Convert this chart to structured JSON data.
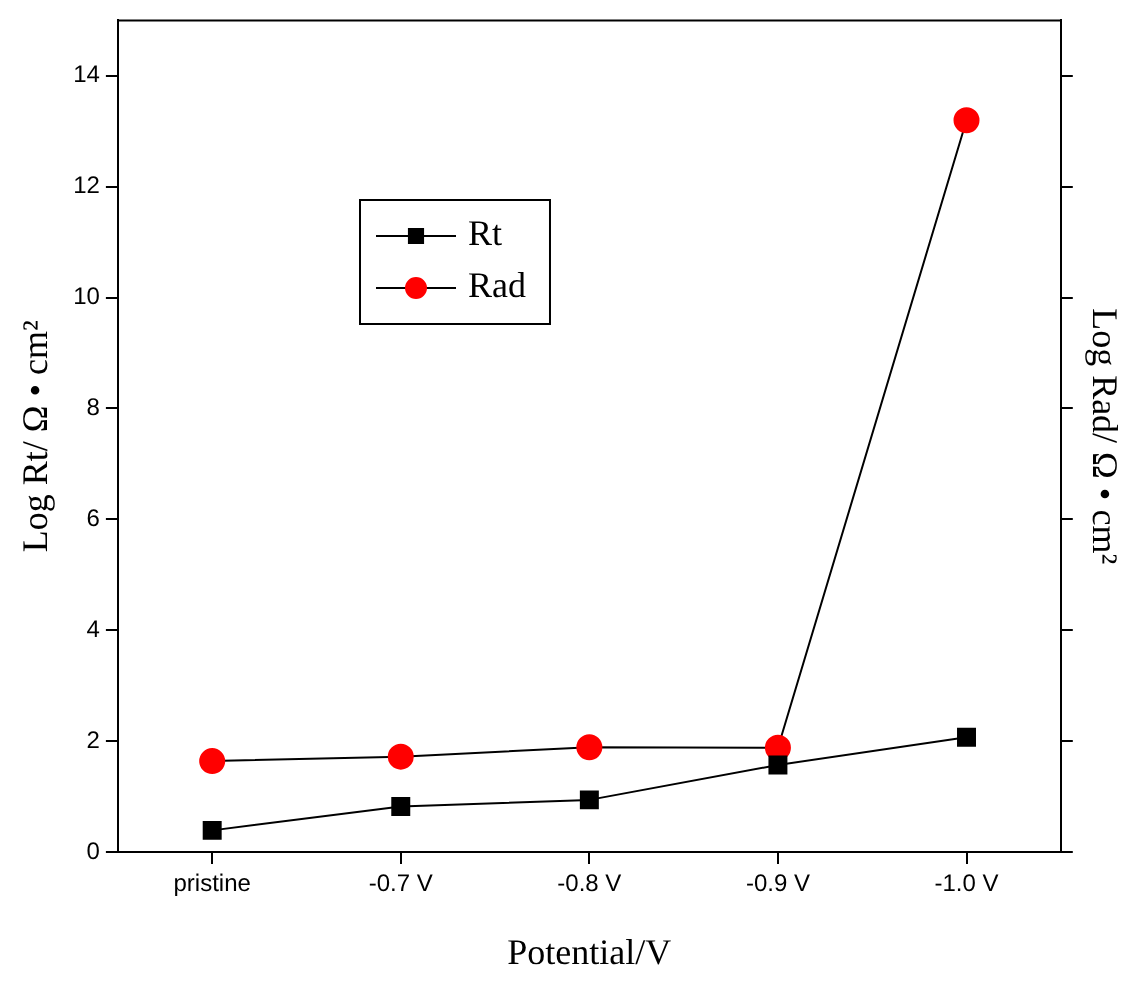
{
  "chart_data": {
    "type": "line",
    "xlabel": "Potential/V",
    "ylabel": "Log Rt/ Ω • cm²",
    "y2label": "Log Rad/ Ω • cm²",
    "categories": [
      "pristine",
      "-0.7 V",
      "-0.8 V",
      "-0.9 V",
      "-1.0 V"
    ],
    "series": [
      {
        "name": "Rt",
        "color": "#000000",
        "marker": "square",
        "values": [
          0.39,
          0.82,
          0.94,
          1.57,
          2.07
        ]
      },
      {
        "name": "Rad",
        "color": "#ff0000",
        "marker": "circle",
        "values": [
          1.64,
          1.72,
          1.89,
          1.88,
          13.2
        ]
      }
    ],
    "ylim": [
      0,
      15
    ],
    "yticks": [
      0,
      2,
      4,
      6,
      8,
      10,
      12,
      14
    ],
    "grid": false,
    "legend": "top left",
    "tick_labels": "xy",
    "line_style": "solid"
  }
}
